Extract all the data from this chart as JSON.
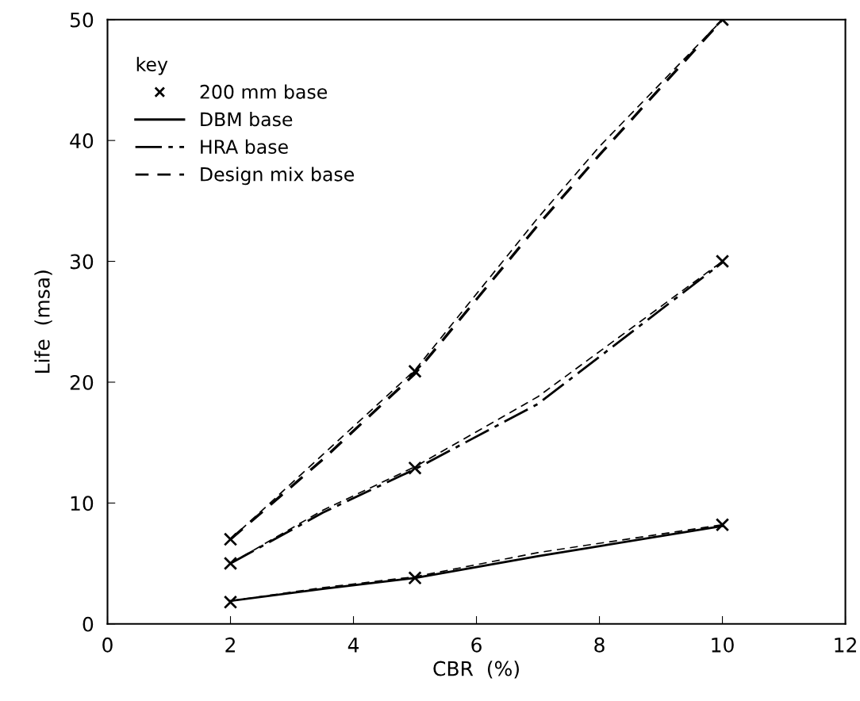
{
  "chart_data": {
    "type": "line",
    "xlabel": "CBR  (%)",
    "ylabel": "Life  (msa)",
    "legend_title": "key",
    "legend": "top left",
    "grid": false,
    "xlim": [
      0,
      12
    ],
    "xticks": [
      0,
      2,
      4,
      6,
      8,
      10,
      12
    ],
    "ylim": [
      0,
      50
    ],
    "yticks": [
      0,
      10,
      20,
      30,
      40,
      50
    ],
    "series": [
      {
        "name": "200 mm base",
        "type": "scatter",
        "marker": "cross",
        "color": "#000000",
        "x": [
          2,
          5,
          10,
          2,
          5,
          10,
          2,
          5,
          10
        ],
        "values": [
          1.8,
          3.8,
          8.2,
          5,
          12.9,
          30,
          7,
          20.9,
          50
        ]
      },
      {
        "name": "DBM base",
        "line_style": "solid",
        "color": "#000000",
        "x": [
          2,
          3.5,
          5,
          7,
          10
        ],
        "values": [
          1.9,
          2.9,
          3.8,
          5.6,
          8.1
        ]
      },
      {
        "name": "HRA base",
        "line_style": "dashdot",
        "color": "#000000",
        "x": [
          2,
          3.5,
          5,
          7,
          10
        ],
        "values": [
          5,
          9.2,
          12.8,
          18.2,
          29.9
        ]
      },
      {
        "name": "Design mix base",
        "line_style": "dashed",
        "color": "#000000",
        "x": [
          2,
          3.5,
          5,
          7,
          10
        ],
        "values": [
          1.9,
          3.0,
          3.9,
          5.9,
          8.2
        ]
      },
      {
        "line_style": "dashed",
        "color": "#000000",
        "x": [
          2,
          3.5,
          5,
          7,
          10
        ],
        "values": [
          5,
          9.4,
          13.0,
          18.8,
          30
        ]
      },
      {
        "line_style": "dashed",
        "color": "#000000",
        "x": [
          2,
          3.5,
          5,
          7,
          8,
          10
        ],
        "values": [
          7,
          14.0,
          21,
          33.6,
          39.5,
          50
        ]
      },
      {
        "line_style": "dashed",
        "color": "#000000",
        "x": [
          2,
          3.5,
          5,
          7,
          8,
          10
        ],
        "values": [
          7,
          13.6,
          20.7,
          33.0,
          38.8,
          50
        ]
      }
    ]
  }
}
